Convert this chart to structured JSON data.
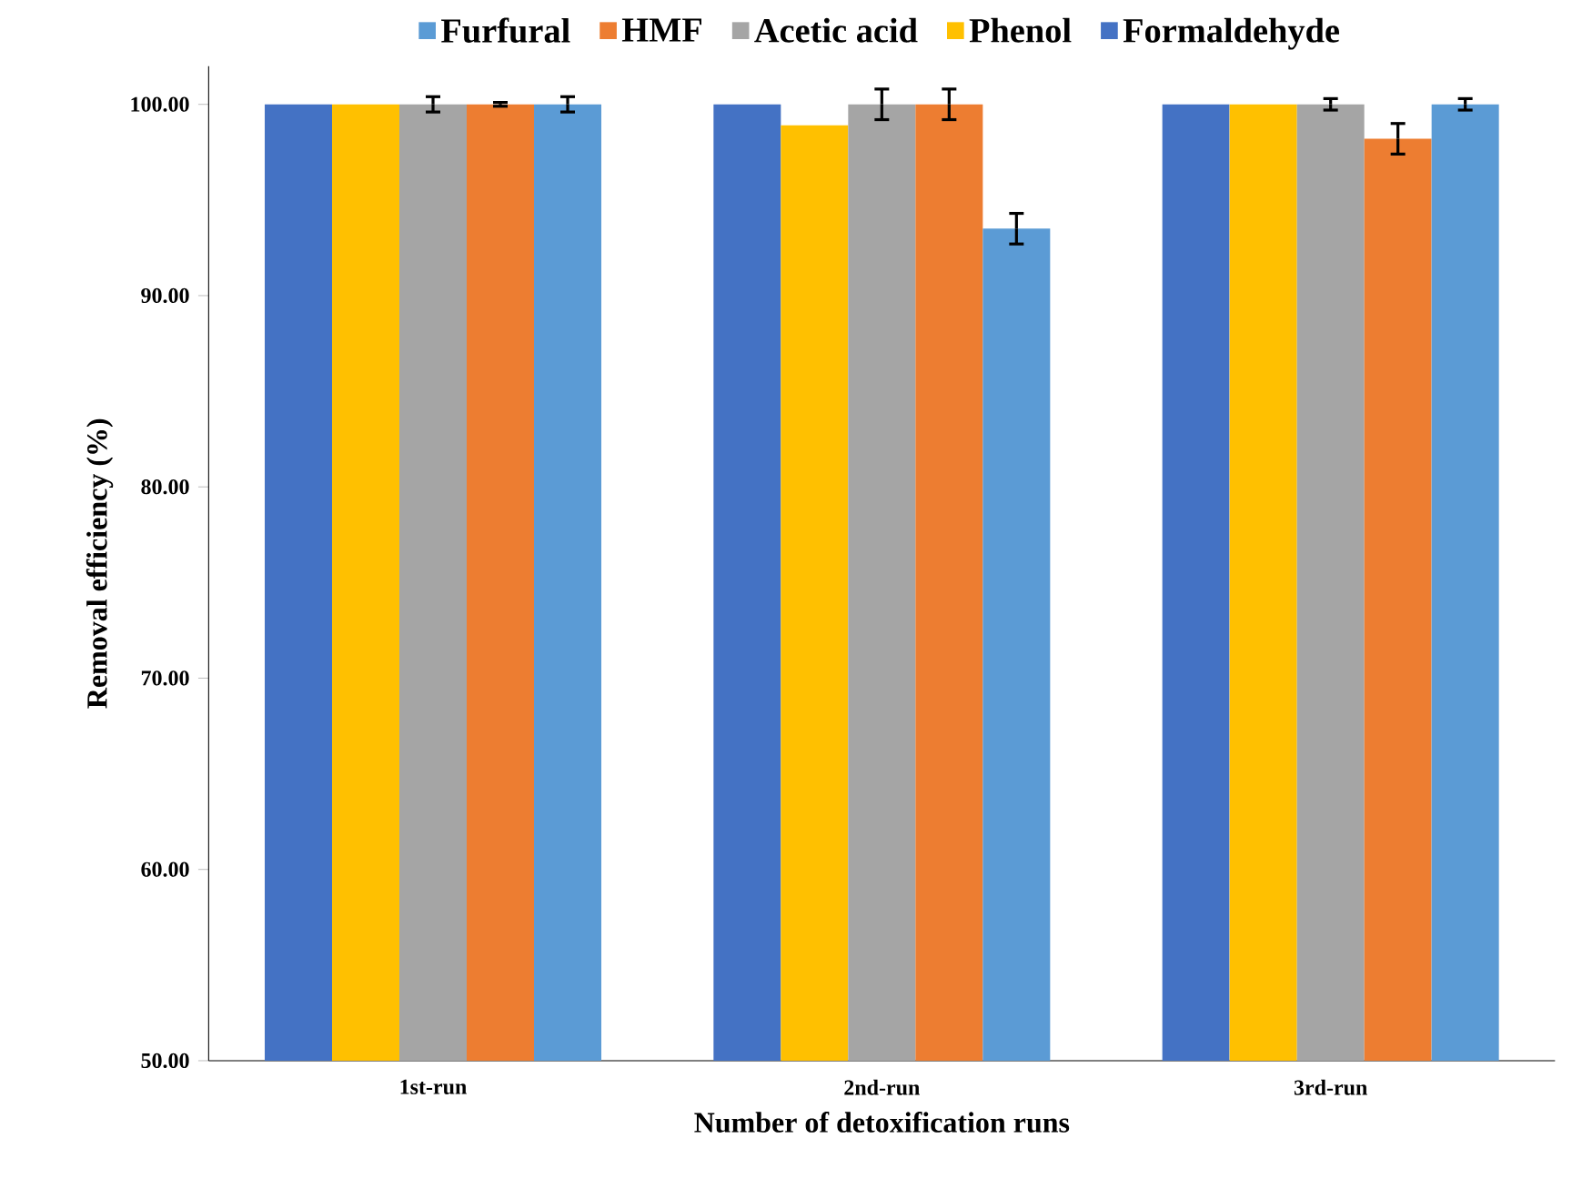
{
  "chart_data": {
    "type": "bar",
    "xlabel": "Number of detoxification runs",
    "ylabel": "Removal efficiency (%)",
    "categories": [
      "1st-run",
      "2nd-run",
      "3rd-run"
    ],
    "series": [
      {
        "name": "Furfural",
        "color": "#5b9bd5",
        "values": [
          100,
          93.5,
          100
        ],
        "errors": [
          0.4,
          0.8,
          0.3
        ]
      },
      {
        "name": "HMF",
        "color": "#ed7d31",
        "values": [
          100,
          100,
          98.2
        ],
        "errors": [
          0.1,
          0.8,
          0.8
        ]
      },
      {
        "name": "Acetic acid",
        "color": "#a5a5a5",
        "values": [
          100,
          100,
          100
        ],
        "errors": [
          0.4,
          0.8,
          0.3
        ]
      },
      {
        "name": "Phenol",
        "color": "#ffc000",
        "values": [
          100,
          98.9,
          100
        ]
      },
      {
        "name": "Formaldehyde",
        "color": "#4472c4",
        "values": [
          100,
          100,
          100
        ]
      }
    ],
    "ylim": [
      50,
      102
    ],
    "yticks": [
      {
        "value": 50,
        "label": "50.00"
      },
      {
        "value": 60,
        "label": "60.00"
      },
      {
        "value": 70,
        "label": "70.00"
      },
      {
        "value": 80,
        "label": "80.00"
      },
      {
        "value": 90,
        "label": "90.00"
      },
      {
        "value": 100,
        "label": "100.00"
      }
    ],
    "legend": "top",
    "grid": false
  }
}
